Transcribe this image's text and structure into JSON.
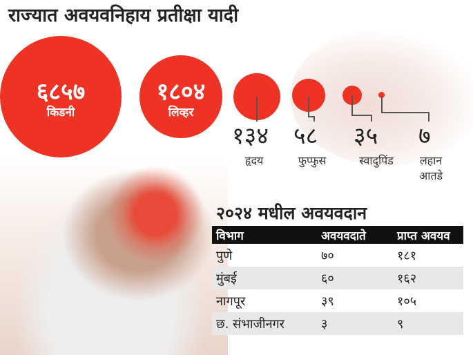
{
  "title": "राज्यात अवयवनिहाय प्रतीक्षा यादी",
  "waitlist": [
    {
      "organ": "किडनी",
      "value": "६८५७",
      "number": 6857
    },
    {
      "organ": "लिव्हर",
      "value": "१८०४",
      "number": 1804
    },
    {
      "organ": "हृदय",
      "value": "१३४",
      "number": 134
    },
    {
      "organ": "फुप्फुस",
      "value": "५८",
      "number": 58
    },
    {
      "organ": "स्वादुपिंड",
      "value": "३५",
      "number": 35
    },
    {
      "organ_line1": "लहान",
      "organ_line2": "आतडे",
      "value": "७",
      "number": 7
    }
  ],
  "accent_color": "#ee3224",
  "donation": {
    "title": "२०२४ मधील अवयवदान",
    "headers": [
      "विभाग",
      "अवयवदाते",
      "प्राप्त अवयव"
    ],
    "rows": [
      [
        "पुणे",
        "७०",
        "१८१"
      ],
      [
        "मुंबई",
        "६०",
        "१६२"
      ],
      [
        "नागपूर",
        "३९",
        "१०५"
      ],
      [
        "छ. संभाजीनगर",
        "३",
        "९"
      ]
    ]
  }
}
